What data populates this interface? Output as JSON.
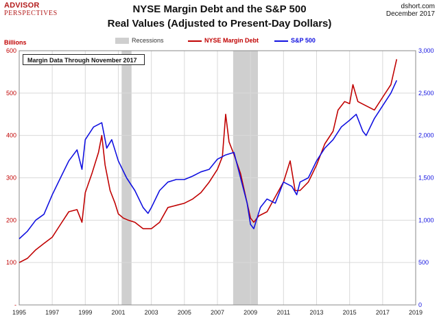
{
  "logo": {
    "line1": "ADVISOR",
    "line2": "PERSPECTIVES"
  },
  "source": {
    "line1": "dshort.com",
    "line2": "December 2017"
  },
  "note": "Margin Data Through November 2017",
  "colors": {
    "margin": "#c00000",
    "sp500": "#1010e0",
    "recession": "#cfcfcf",
    "grid": "#d9d9d9"
  },
  "chart_data": {
    "type": "line",
    "title": "NYSE Margin Debt and the S&P 500",
    "subtitle": "Real Values (Adjusted to Present-Day Dollars)",
    "ylabel_left": "Billions",
    "grid": true,
    "legend_placement": "top",
    "x_ticks": [
      "1995",
      "1997",
      "1999",
      "2001",
      "2003",
      "2005",
      "2007",
      "2009",
      "2011",
      "2013",
      "2015",
      "2017",
      "2019"
    ],
    "y_left_ticks": [
      "-",
      "100",
      "200",
      "300",
      "400",
      "500",
      "600"
    ],
    "y_right_ticks": [
      "0",
      "500",
      "1,000",
      "1,500",
      "2,000",
      "2,500",
      "3,000"
    ],
    "y_left_range": [
      0,
      600
    ],
    "y_right_range": [
      0,
      3000
    ],
    "x_range": [
      1995,
      2019
    ],
    "recessions": [
      {
        "label": "Recessions",
        "start": 2001.2,
        "end": 2001.8
      },
      {
        "start": 2007.95,
        "end": 2009.45
      }
    ],
    "series": [
      {
        "name": "NYSE Margin Debt",
        "axis": "left",
        "x": [
          1995,
          1995.5,
          1996,
          1996.5,
          1997,
          1997.5,
          1998,
          1998.5,
          1998.8,
          1999,
          1999.4,
          1999.8,
          2000,
          2000.2,
          2000.5,
          2000.8,
          2001,
          2001.3,
          2001.6,
          2002,
          2002.5,
          2003,
          2003.5,
          2004,
          2004.5,
          2005,
          2005.5,
          2006,
          2006.5,
          2007,
          2007.3,
          2007.5,
          2007.7,
          2008,
          2008.4,
          2008.8,
          2009,
          2009.2,
          2009.5,
          2010,
          2010.5,
          2011,
          2011.4,
          2011.7,
          2012,
          2012.5,
          2013,
          2013.5,
          2014,
          2014.3,
          2014.7,
          2015,
          2015.2,
          2015.5,
          2016,
          2016.5,
          2017,
          2017.5,
          2017.85
        ],
        "values": [
          100,
          110,
          130,
          145,
          160,
          190,
          220,
          225,
          195,
          265,
          310,
          360,
          400,
          330,
          270,
          240,
          215,
          205,
          200,
          195,
          180,
          180,
          195,
          230,
          235,
          240,
          250,
          265,
          290,
          320,
          350,
          450,
          385,
          355,
          310,
          240,
          205,
          195,
          210,
          220,
          255,
          290,
          340,
          270,
          270,
          290,
          330,
          380,
          410,
          460,
          480,
          475,
          520,
          480,
          470,
          460,
          490,
          520,
          580
        ]
      },
      {
        "name": "S&P 500",
        "axis": "right",
        "x": [
          1995,
          1995.5,
          1996,
          1996.5,
          1997,
          1997.5,
          1998,
          1998.5,
          1998.8,
          1999,
          1999.5,
          2000,
          2000.3,
          2000.6,
          2001,
          2001.5,
          2002,
          2002.5,
          2002.8,
          2003,
          2003.5,
          2004,
          2004.5,
          2005,
          2005.5,
          2006,
          2006.5,
          2007,
          2007.5,
          2008,
          2008.4,
          2008.8,
          2009,
          2009.2,
          2009.6,
          2010,
          2010.5,
          2011,
          2011.5,
          2011.8,
          2012,
          2012.5,
          2013,
          2013.5,
          2014,
          2014.5,
          2015,
          2015.4,
          2015.8,
          2016,
          2016.5,
          2017,
          2017.5,
          2017.85
        ],
        "values": [
          780,
          870,
          1000,
          1070,
          1300,
          1500,
          1700,
          1830,
          1600,
          1950,
          2100,
          2150,
          1850,
          1950,
          1700,
          1500,
          1350,
          1150,
          1080,
          1150,
          1350,
          1450,
          1480,
          1480,
          1520,
          1570,
          1600,
          1720,
          1770,
          1800,
          1500,
          1200,
          950,
          900,
          1150,
          1250,
          1200,
          1450,
          1400,
          1300,
          1450,
          1500,
          1700,
          1850,
          1950,
          2100,
          2180,
          2250,
          2050,
          2000,
          2200,
          2350,
          2500,
          2650
        ]
      }
    ]
  }
}
